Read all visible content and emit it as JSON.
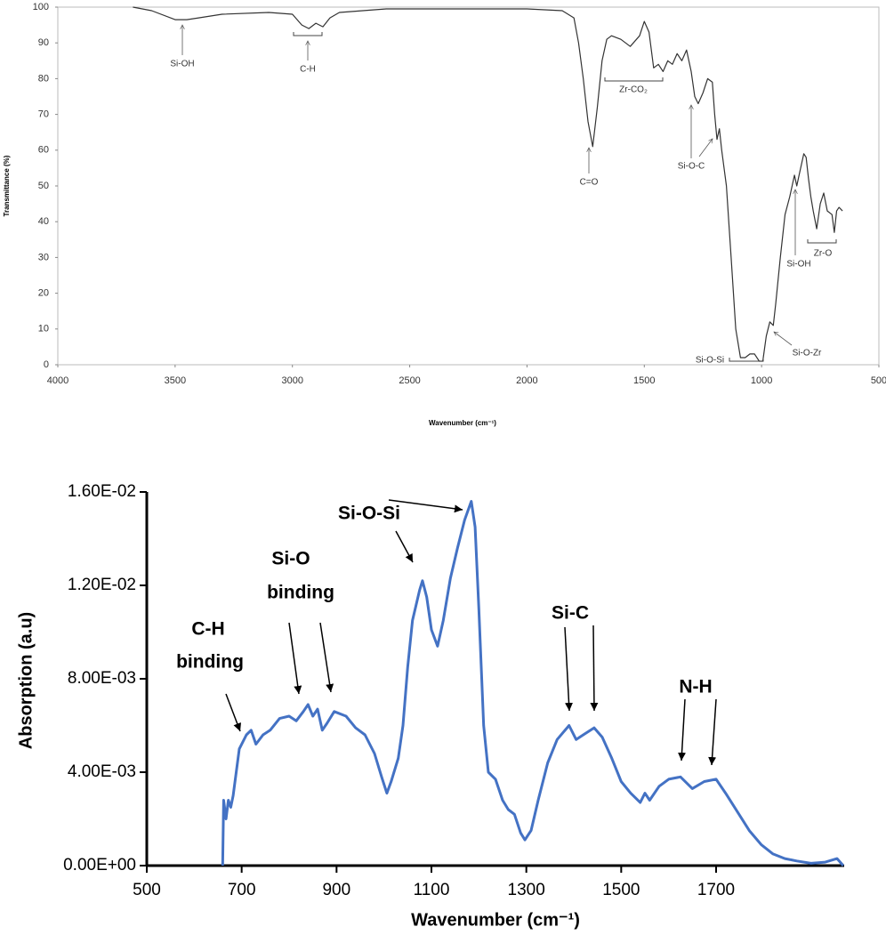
{
  "chart_data": [
    {
      "type": "line",
      "xlabel": "Wavenumber (cm⁻¹)",
      "ylabel": "Transmittance (%)",
      "xlim": [
        4000,
        500
      ],
      "xticks": [
        4000,
        3500,
        3000,
        2500,
        2000,
        1500,
        1000,
        500
      ],
      "ylim": [
        0,
        100
      ],
      "yticks": [
        0,
        10,
        20,
        30,
        40,
        50,
        60,
        70,
        80,
        90,
        100
      ],
      "color": "#333333",
      "x": [
        3680,
        3600,
        3500,
        3450,
        3400,
        3300,
        3100,
        3000,
        2960,
        2930,
        2900,
        2870,
        2840,
        2800,
        2600,
        2000,
        1850,
        1800,
        1780,
        1760,
        1740,
        1720,
        1700,
        1680,
        1660,
        1640,
        1600,
        1560,
        1520,
        1500,
        1480,
        1460,
        1440,
        1420,
        1400,
        1380,
        1360,
        1340,
        1320,
        1300,
        1285,
        1270,
        1250,
        1230,
        1210,
        1200,
        1190,
        1180,
        1170,
        1150,
        1130,
        1110,
        1090,
        1070,
        1050,
        1030,
        1010,
        995,
        980,
        965,
        950,
        940,
        920,
        900,
        880,
        860,
        850,
        840,
        820,
        810,
        800,
        790,
        780,
        765,
        750,
        735,
        720,
        700,
        690,
        680,
        670,
        655
      ],
      "values": [
        100,
        99,
        96.5,
        96.5,
        97,
        98,
        98.5,
        98,
        95,
        94,
        95.5,
        94.5,
        97,
        98.5,
        99.5,
        99.5,
        99,
        97,
        90,
        80,
        68,
        61,
        72,
        85,
        91,
        92,
        91,
        89,
        92,
        96,
        93,
        83,
        84,
        82,
        85,
        84,
        87,
        85,
        88,
        82,
        75,
        73,
        76,
        80,
        79,
        70,
        63,
        66,
        60,
        50,
        30,
        10,
        2,
        2,
        3,
        3,
        1,
        1,
        8,
        12,
        11,
        17,
        30,
        42,
        47,
        53,
        50,
        53,
        59,
        58,
        52,
        47,
        43,
        38,
        45,
        48,
        43,
        42,
        37,
        43,
        44,
        43
      ],
      "annotations": [
        "Si-OH",
        "C-H",
        "C=O",
        "Zr-CO₂",
        "Si-O-C",
        "Si-O-Si",
        "Si-O-Zr",
        "Si-OH",
        "Zr-O"
      ]
    },
    {
      "type": "line",
      "xlabel": "Wavenumber (cm⁻¹)",
      "ylabel": "Absorption (a.u)",
      "xlim": [
        500,
        1970
      ],
      "xticks": [
        500,
        700,
        900,
        1100,
        1300,
        1500,
        1700
      ],
      "ylim": [
        0,
        0.016
      ],
      "yticks": [
        {
          "value": 0,
          "label": "0.00E+00"
        },
        {
          "value": 0.004,
          "label": "4.00E-03"
        },
        {
          "value": 0.008,
          "label": "8.00E-03"
        },
        {
          "value": 0.012,
          "label": "1.20E-02"
        },
        {
          "value": 0.016,
          "label": "1.60E-02"
        }
      ],
      "color": "#4472c4",
      "x": [
        660,
        662,
        667,
        672,
        677,
        682,
        695,
        710,
        720,
        730,
        745,
        760,
        780,
        800,
        815,
        830,
        840,
        850,
        860,
        870,
        880,
        895,
        920,
        940,
        960,
        980,
        995,
        1006,
        1015,
        1030,
        1040,
        1050,
        1060,
        1075,
        1081,
        1090,
        1100,
        1113,
        1125,
        1140,
        1155,
        1170,
        1184,
        1192,
        1200,
        1210,
        1220,
        1235,
        1250,
        1262,
        1275,
        1288,
        1297,
        1310,
        1325,
        1345,
        1365,
        1390,
        1405,
        1420,
        1443,
        1460,
        1480,
        1500,
        1520,
        1540,
        1550,
        1560,
        1580,
        1600,
        1625,
        1650,
        1675,
        1700,
        1720,
        1745,
        1770,
        1795,
        1820,
        1845,
        1870,
        1900,
        1930,
        1955,
        1968
      ],
      "values": [
        0,
        0.0028,
        0.002,
        0.0028,
        0.0025,
        0.003,
        0.005,
        0.0056,
        0.0058,
        0.0052,
        0.0056,
        0.0058,
        0.0063,
        0.0064,
        0.0062,
        0.0066,
        0.0069,
        0.0064,
        0.0067,
        0.0058,
        0.0061,
        0.0066,
        0.0064,
        0.0059,
        0.0056,
        0.0048,
        0.0038,
        0.0031,
        0.0036,
        0.0046,
        0.006,
        0.0085,
        0.0105,
        0.0118,
        0.0122,
        0.0115,
        0.0101,
        0.0094,
        0.0105,
        0.0123,
        0.0136,
        0.0148,
        0.0156,
        0.0145,
        0.011,
        0.006,
        0.004,
        0.0037,
        0.0028,
        0.0024,
        0.0022,
        0.0014,
        0.0011,
        0.0015,
        0.0028,
        0.0044,
        0.0054,
        0.006,
        0.0054,
        0.0056,
        0.0059,
        0.0055,
        0.0046,
        0.0036,
        0.0031,
        0.0027,
        0.0031,
        0.0028,
        0.0034,
        0.0037,
        0.0038,
        0.0033,
        0.0036,
        0.0037,
        0.0031,
        0.0023,
        0.0015,
        0.0009,
        0.0005,
        0.0003,
        0.0002,
        0.0001,
        0.00015,
        0.0003,
        0
      ],
      "annotations": [
        [
          "C-H",
          "binding"
        ],
        [
          "Si-O",
          "binding"
        ],
        [
          "Si-O-Si"
        ],
        [
          "Si-C"
        ],
        [
          "N-H"
        ]
      ]
    }
  ]
}
